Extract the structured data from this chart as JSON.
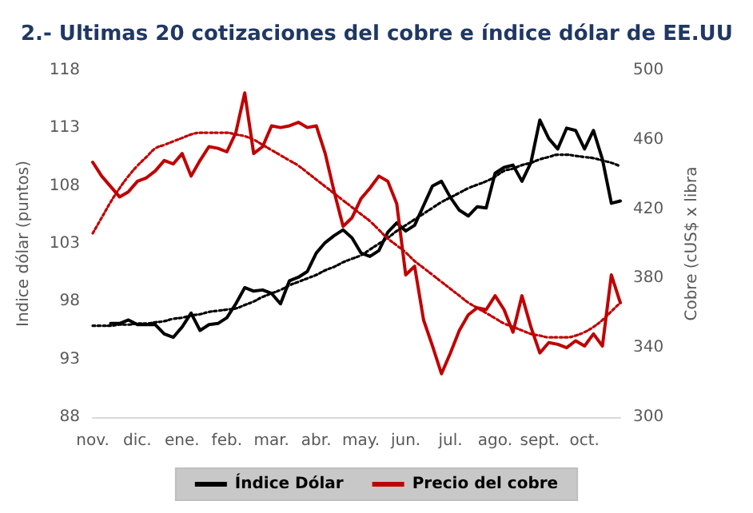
{
  "chart_data": {
    "type": "line",
    "title": "2.- Ultimas 20 cotizaciones del cobre e índice dólar de EE.UU",
    "ylabel": "Indice dólar (puntos)",
    "y2label": "Cobre (cUS$ x libra",
    "categories": [
      "nov.",
      null,
      null,
      null,
      null,
      "dic.",
      null,
      null,
      null,
      null,
      "ene.",
      null,
      null,
      null,
      null,
      "feb.",
      null,
      null,
      null,
      null,
      "mar.",
      null,
      null,
      null,
      null,
      "abr.",
      null,
      null,
      null,
      null,
      "may.",
      null,
      null,
      null,
      null,
      "jun.",
      null,
      null,
      null,
      null,
      "jul.",
      null,
      null,
      null,
      null,
      "ago.",
      null,
      null,
      null,
      null,
      "sept.",
      null,
      null,
      null,
      null,
      "oct.",
      null,
      null,
      null,
      null
    ],
    "ylim": [
      88,
      118
    ],
    "yticks": [
      88,
      93,
      98,
      103,
      108,
      113,
      118
    ],
    "y2lim": [
      300,
      500
    ],
    "y2ticks": [
      300,
      340,
      380,
      420,
      460,
      500
    ],
    "legend": "bottom",
    "marker": "none",
    "line_style": "solid",
    "series": [
      {
        "name": "Índice Dólar",
        "color": "#000000",
        "values": [
          null,
          null,
          96.1,
          96.1,
          96.4,
          96.0,
          96.0,
          96.0,
          95.2,
          94.9,
          95.8,
          97.0,
          95.5,
          96.0,
          96.1,
          96.6,
          97.8,
          99.2,
          98.9,
          99.0,
          98.7,
          97.8,
          99.8,
          100.1,
          100.6,
          102.2,
          103.1,
          103.7,
          104.2,
          103.5,
          102.2,
          101.9,
          102.4,
          104.0,
          104.8,
          104.1,
          104.6,
          106.3,
          108.0,
          108.4,
          107.0,
          105.9,
          105.4,
          106.2,
          106.1,
          109.1,
          109.6,
          109.8,
          108.4,
          110.0,
          113.7,
          112.1,
          111.2,
          113.0,
          112.8,
          111.2,
          112.8,
          110.3,
          106.5,
          106.7
        ]
      },
      {
        "name": "Precio del cobre",
        "color": "#c00000",
        "axis": "y2",
        "values": [
          447,
          439,
          433,
          427,
          430,
          436,
          438,
          442,
          448,
          446,
          452,
          439,
          448,
          456,
          455,
          453,
          464,
          487,
          452,
          456,
          468,
          467,
          468,
          470,
          467,
          468,
          452,
          430,
          410,
          415,
          426,
          432,
          439,
          436,
          423,
          382,
          387,
          356,
          341,
          325,
          337,
          350,
          359,
          363,
          362,
          370,
          362,
          349,
          370,
          352,
          337,
          343,
          342,
          340,
          344,
          341,
          348,
          341,
          382,
          366
        ]
      },
      {
        "color": "#000000",
        "line_style": "dotted",
        "values": [
          95.9,
          95.9,
          95.9,
          96.0,
          96.0,
          96.1,
          96.1,
          96.2,
          96.3,
          96.5,
          96.6,
          96.8,
          96.9,
          97.1,
          97.2,
          97.3,
          97.4,
          97.7,
          98.0,
          98.4,
          98.7,
          99.0,
          99.4,
          99.7,
          100.0,
          100.3,
          100.7,
          101.0,
          101.4,
          101.7,
          102.0,
          102.5,
          103.0,
          103.5,
          104.1,
          104.6,
          105.1,
          105.6,
          106.1,
          106.6,
          107.0,
          107.4,
          107.8,
          108.1,
          108.4,
          108.8,
          109.3,
          109.5,
          109.8,
          110.0,
          110.3,
          110.5,
          110.7,
          110.7,
          110.6,
          110.5,
          110.4,
          110.2,
          110.0,
          109.7
        ]
      },
      {
        "color": "#c00000",
        "line_style": "dotted",
        "axis": "y2",
        "values": [
          406,
          415,
          424,
          432,
          439,
          445,
          450,
          455,
          457,
          459,
          461,
          463,
          464,
          464,
          464,
          464,
          463,
          462,
          460,
          457,
          454,
          451,
          448,
          445,
          441,
          437,
          433,
          429,
          425,
          421,
          417,
          413,
          408,
          403,
          399,
          395,
          390,
          386,
          382,
          378,
          374,
          370,
          366,
          363,
          360,
          357,
          354,
          352,
          350,
          348,
          347,
          346,
          346,
          346,
          347,
          349,
          352,
          356,
          361,
          366
        ]
      }
    ]
  }
}
